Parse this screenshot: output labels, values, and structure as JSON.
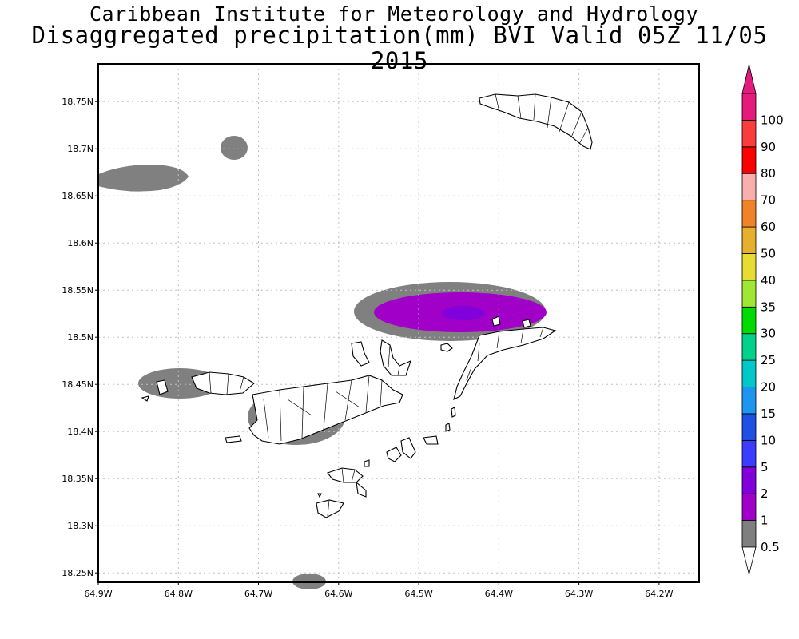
{
  "title": "Caribbean Institute for Meteorology and Hydrology",
  "subtitle": "Disaggregated precipitation(mm) BVI Valid 05Z 11/05 2015",
  "map": {
    "lon_range": [
      -64.9,
      -64.15
    ],
    "lat_range": [
      18.24,
      18.79
    ],
    "grid": true,
    "lat_ticks": [
      "18.75N",
      "18.7N",
      "18.65N",
      "18.6N",
      "18.55N",
      "18.5N",
      "18.45N",
      "18.4N",
      "18.35N",
      "18.3N",
      "18.25N"
    ],
    "lat_values": [
      18.75,
      18.7,
      18.65,
      18.6,
      18.55,
      18.5,
      18.45,
      18.4,
      18.35,
      18.3,
      18.25
    ],
    "lon_ticks": [
      "64.9W",
      "64.8W",
      "64.7W",
      "64.6W",
      "64.5W",
      "64.4W",
      "64.3W",
      "64.2W"
    ],
    "lon_values": [
      -64.9,
      -64.8,
      -64.7,
      -64.6,
      -64.5,
      -64.4,
      -64.3,
      -64.2
    ]
  },
  "colorbar": {
    "labels": [
      "0.5",
      "1",
      "2",
      "5",
      "10",
      "15",
      "20",
      "25",
      "30",
      "35",
      "40",
      "50",
      "60",
      "70",
      "80",
      "90",
      "100"
    ],
    "colors": [
      "#7f7f7f",
      "#a000c8",
      "#8200dc",
      "#3c3cff",
      "#1e50e6",
      "#1e96f0",
      "#00c8c8",
      "#00d28c",
      "#00dc00",
      "#a0e632",
      "#e6dc32",
      "#e6af2d",
      "#f08228",
      "#faafaf",
      "#fa0000",
      "#fa3c3c",
      "#e6197d"
    ]
  },
  "precip_areas": [
    {
      "name": "central-east cell",
      "level": "2",
      "colors": {
        "outer": "#808080",
        "mid": "#a000c8",
        "core": "#8200dc"
      }
    },
    {
      "name": "tortola cell",
      "level": "1",
      "colors": {
        "outer": "#808080",
        "mid": "#a000c8"
      }
    },
    {
      "name": "west cell",
      "level": "0.5"
    },
    {
      "name": "northwest cell",
      "level": "0.5"
    },
    {
      "name": "small north cell",
      "level": "0.5"
    },
    {
      "name": "south cell",
      "level": "0.5"
    }
  ]
}
